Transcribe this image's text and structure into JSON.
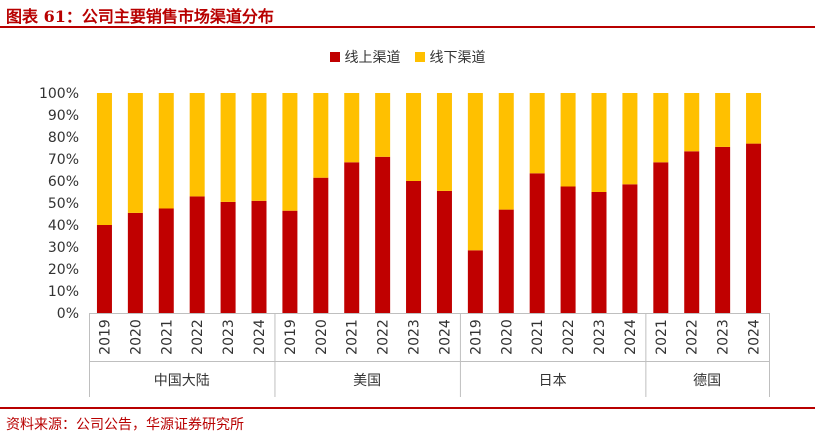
{
  "header": {
    "title": "图表 61：公司主要销售市场渠道分布"
  },
  "footer": {
    "source": "资料来源：公司公告，华源证券研究所"
  },
  "colors": {
    "online": "#c00000",
    "offline": "#ffc000",
    "accent": "#b80000"
  },
  "chart_data": {
    "type": "bar",
    "stacked": true,
    "ylim": [
      0,
      100
    ],
    "yticks": [
      "0%",
      "10%",
      "20%",
      "30%",
      "40%",
      "50%",
      "60%",
      "70%",
      "80%",
      "90%",
      "100%"
    ],
    "legend_position": "top-center",
    "groups": [
      {
        "name": "中国大陆",
        "years": [
          "2019",
          "2020",
          "2021",
          "2022",
          "2023",
          "2024"
        ],
        "online": [
          40,
          45.5,
          47.5,
          53,
          50.5,
          51
        ],
        "offline": [
          60,
          54.5,
          52.5,
          47,
          49.5,
          49
        ]
      },
      {
        "name": "美国",
        "years": [
          "2019",
          "2020",
          "2021",
          "2022",
          "2023",
          "2024"
        ],
        "online": [
          46.5,
          61.5,
          68.5,
          71,
          60,
          55.5
        ],
        "offline": [
          53.5,
          38.5,
          31.5,
          29,
          40,
          44.5
        ]
      },
      {
        "name": "日本",
        "years": [
          "2019",
          "2020",
          "2021",
          "2022",
          "2023",
          "2024"
        ],
        "online": [
          28.5,
          47,
          63.5,
          57.5,
          55,
          58.5
        ],
        "offline": [
          71.5,
          53,
          36.5,
          42.5,
          45,
          41.5
        ]
      },
      {
        "name": "德国",
        "years": [
          "2021",
          "2022",
          "2023",
          "2024"
        ],
        "online": [
          68.5,
          73.5,
          75.5,
          77
        ],
        "offline": [
          31.5,
          26.5,
          24.5,
          23
        ]
      }
    ],
    "series": [
      {
        "name": "线上渠道",
        "key": "online"
      },
      {
        "name": "线下渠道",
        "key": "offline"
      }
    ]
  }
}
